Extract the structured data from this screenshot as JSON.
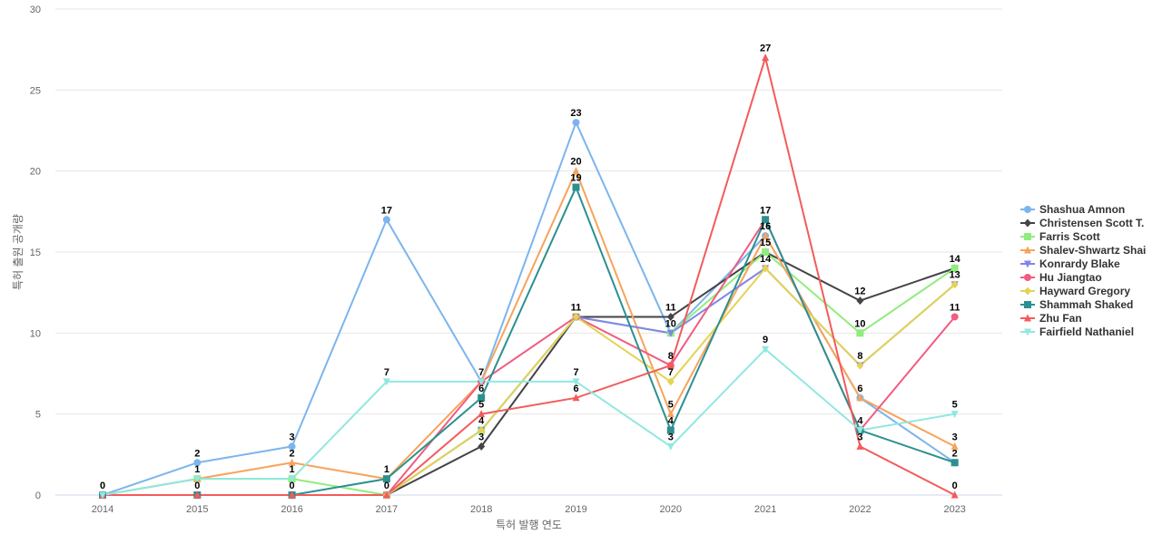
{
  "chart_data": {
    "type": "line",
    "title": "",
    "xlabel": "특허 발행 연도",
    "ylabel": "특허 출원 공개량",
    "ylim": [
      0,
      30
    ],
    "y_ticks": [
      0,
      5,
      10,
      15,
      20,
      25,
      30
    ],
    "grid": true,
    "legend_position": "right",
    "categories": [
      "2014",
      "2015",
      "2016",
      "2017",
      "2018",
      "2019",
      "2020",
      "2021",
      "2022",
      "2023"
    ],
    "series": [
      {
        "name": "Shashua Amnon",
        "color": "#7cb5ec",
        "marker": "circle",
        "values": [
          0,
          2,
          3,
          17,
          7,
          23,
          10,
          16,
          6,
          2
        ]
      },
      {
        "name": "Christensen Scott T.",
        "color": "#434348",
        "marker": "diamond",
        "values": [
          0,
          0,
          0,
          0,
          3,
          11,
          11,
          15,
          12,
          14
        ]
      },
      {
        "name": "Farris Scott",
        "color": "#90ed7d",
        "marker": "square",
        "values": [
          0,
          1,
          1,
          0,
          4,
          11,
          10,
          15,
          10,
          14
        ]
      },
      {
        "name": "Shalev-Shwartz Shai",
        "color": "#f7a35c",
        "marker": "triangle",
        "values": [
          0,
          1,
          2,
          1,
          7,
          20,
          5,
          16,
          6,
          3
        ]
      },
      {
        "name": "Konrardy Blake",
        "color": "#8085e9",
        "marker": "triangle-down",
        "values": [
          0,
          0,
          0,
          0,
          4,
          11,
          10,
          14,
          8,
          13
        ]
      },
      {
        "name": "Hu Jiangtao",
        "color": "#f15c80",
        "marker": "circle",
        "values": [
          0,
          0,
          0,
          0,
          7,
          11,
          8,
          17,
          4,
          11
        ]
      },
      {
        "name": "Hayward Gregory",
        "color": "#e4d354",
        "marker": "diamond",
        "values": [
          0,
          0,
          0,
          0,
          4,
          11,
          7,
          14,
          8,
          13
        ]
      },
      {
        "name": "Shammah Shaked",
        "color": "#2b908f",
        "marker": "square",
        "values": [
          0,
          0,
          0,
          1,
          6,
          19,
          4,
          17,
          4,
          2
        ]
      },
      {
        "name": "Zhu Fan",
        "color": "#f45b5b",
        "marker": "triangle",
        "values": [
          0,
          0,
          0,
          0,
          5,
          6,
          8,
          27,
          3,
          0
        ]
      },
      {
        "name": "Fairfield Nathaniel",
        "color": "#91e8e1",
        "marker": "triangle-down",
        "values": [
          0,
          1,
          1,
          7,
          7,
          7,
          3,
          9,
          4,
          5
        ]
      }
    ],
    "data_labels": [
      {
        "category": "2014",
        "text": "0",
        "value": 0
      },
      {
        "category": "2015",
        "text": "2",
        "value": 2
      },
      {
        "category": "2015",
        "text": "1",
        "value": 1
      },
      {
        "category": "2015",
        "text": "0",
        "value": 0
      },
      {
        "category": "2016",
        "text": "3",
        "value": 3
      },
      {
        "category": "2016",
        "text": "2",
        "value": 2
      },
      {
        "category": "2016",
        "text": "1",
        "value": 1
      },
      {
        "category": "2016",
        "text": "0",
        "value": 0
      },
      {
        "category": "2017",
        "text": "17",
        "value": 17
      },
      {
        "category": "2017",
        "text": "7",
        "value": 7
      },
      {
        "category": "2017",
        "text": "1",
        "value": 1
      },
      {
        "category": "2017",
        "text": "0",
        "value": 0
      },
      {
        "category": "2018",
        "text": "7",
        "value": 7
      },
      {
        "category": "2018",
        "text": "6",
        "value": 6
      },
      {
        "category": "2018",
        "text": "5",
        "value": 5
      },
      {
        "category": "2018",
        "text": "4",
        "value": 4
      },
      {
        "category": "2018",
        "text": "3",
        "value": 3
      },
      {
        "category": "2019",
        "text": "23",
        "value": 23
      },
      {
        "category": "2019",
        "text": "20",
        "value": 20
      },
      {
        "category": "2019",
        "text": "19",
        "value": 19
      },
      {
        "category": "2019",
        "text": "11",
        "value": 11
      },
      {
        "category": "2019",
        "text": "7",
        "value": 7
      },
      {
        "category": "2019",
        "text": "6",
        "value": 6
      },
      {
        "category": "2020",
        "text": "11",
        "value": 11
      },
      {
        "category": "2020",
        "text": "10",
        "value": 10
      },
      {
        "category": "2020",
        "text": "8",
        "value": 8
      },
      {
        "category": "2020",
        "text": "7",
        "value": 7
      },
      {
        "category": "2020",
        "text": "5",
        "value": 5
      },
      {
        "category": "2020",
        "text": "4",
        "value": 4
      },
      {
        "category": "2020",
        "text": "3",
        "value": 3
      },
      {
        "category": "2021",
        "text": "27",
        "value": 27
      },
      {
        "category": "2021",
        "text": "17",
        "value": 17
      },
      {
        "category": "2021",
        "text": "16",
        "value": 16
      },
      {
        "category": "2021",
        "text": "15",
        "value": 15
      },
      {
        "category": "2021",
        "text": "14",
        "value": 14
      },
      {
        "category": "2021",
        "text": "9",
        "value": 9
      },
      {
        "category": "2022",
        "text": "12",
        "value": 12
      },
      {
        "category": "2022",
        "text": "10",
        "value": 10
      },
      {
        "category": "2022",
        "text": "8",
        "value": 8
      },
      {
        "category": "2022",
        "text": "6",
        "value": 6
      },
      {
        "category": "2022",
        "text": "4",
        "value": 4
      },
      {
        "category": "2022",
        "text": "3",
        "value": 3
      },
      {
        "category": "2023",
        "text": "14",
        "value": 14
      },
      {
        "category": "2023",
        "text": "13",
        "value": 13
      },
      {
        "category": "2023",
        "text": "11",
        "value": 11
      },
      {
        "category": "2023",
        "text": "5",
        "value": 5
      },
      {
        "category": "2023",
        "text": "3",
        "value": 3
      },
      {
        "category": "2023",
        "text": "2",
        "value": 2
      },
      {
        "category": "2023",
        "text": "0",
        "value": 0
      }
    ]
  }
}
